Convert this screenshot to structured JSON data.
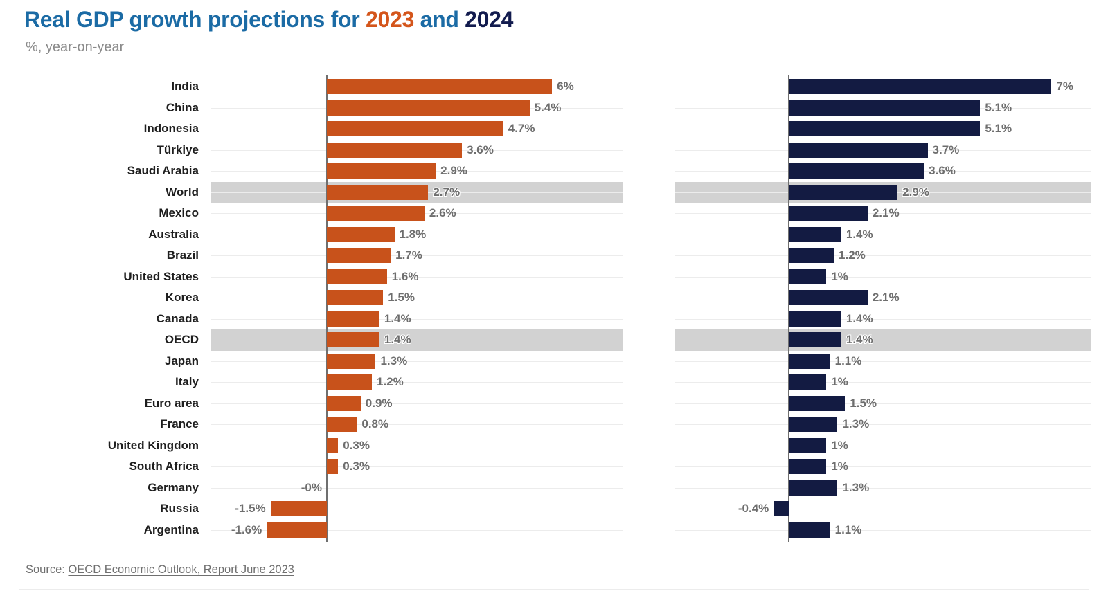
{
  "title": {
    "prefix": "Real GDP growth projections for ",
    "year_2023": "2023",
    "connector": " and ",
    "year_2024": "2024"
  },
  "subtitle": "%, year-on-year",
  "source": {
    "prefix": "Source: ",
    "link_text": "OECD Economic Outlook, Report June 2023"
  },
  "colors": {
    "title_blue": "#1b6ba5",
    "orange_2023": "#c8521b",
    "navy_2024": "#131b42",
    "highlight_band": "#d2d2d2",
    "category_label": "#1e1e1e",
    "value_label": "#6e6e6e",
    "gridline": "#ececec",
    "axis_line": "#6f6f6f"
  },
  "chart_data": {
    "type": "bar",
    "orientation": "horizontal",
    "title": "Real GDP growth projections for 2023 and 2024",
    "subtitle": "%, year-on-year",
    "unit": "%, year-on-year",
    "grid": true,
    "legend_position": "none (years distinguished by color in title)",
    "xlim": [
      -3,
      8
    ],
    "categories": [
      "India",
      "China",
      "Indonesia",
      "Türkiye",
      "Saudi Arabia",
      "World",
      "Mexico",
      "Australia",
      "Brazil",
      "United States",
      "Korea",
      "Canada",
      "OECD",
      "Japan",
      "Italy",
      "Euro area",
      "France",
      "United Kingdom",
      "South Africa",
      "Germany",
      "Russia",
      "Argentina"
    ],
    "highlighted_categories": [
      "World",
      "OECD"
    ],
    "highlighted_indices": [
      5,
      12
    ],
    "series": [
      {
        "name": "2023",
        "color": "#c8521b",
        "values": [
          6,
          5.4,
          4.7,
          3.6,
          2.9,
          2.7,
          2.6,
          1.8,
          1.7,
          1.6,
          1.5,
          1.4,
          1.4,
          1.3,
          1.2,
          0.9,
          0.8,
          0.3,
          0.3,
          0,
          -1.5,
          -1.6
        ],
        "labels": [
          "6%",
          "5.4%",
          "4.7%",
          "3.6%",
          "2.9%",
          "2.7%",
          "2.6%",
          "1.8%",
          "1.7%",
          "1.6%",
          "1.5%",
          "1.4%",
          "1.4%",
          "1.3%",
          "1.2%",
          "0.9%",
          "0.8%",
          "0.3%",
          "0.3%",
          "-0%",
          "-1.5%",
          "-1.6%"
        ]
      },
      {
        "name": "2024",
        "color": "#131b42",
        "values": [
          7,
          5.1,
          5.1,
          3.7,
          3.6,
          2.9,
          2.1,
          1.4,
          1.2,
          1,
          2.1,
          1.4,
          1.4,
          1.1,
          1,
          1.5,
          1.3,
          1,
          1,
          1.3,
          -0.4,
          1.1
        ],
        "labels": [
          "7%",
          "5.1%",
          "5.1%",
          "3.7%",
          "3.6%",
          "2.9%",
          "2.1%",
          "1.4%",
          "1.2%",
          "1%",
          "2.1%",
          "1.4%",
          "1.4%",
          "1.1%",
          "1%",
          "1.5%",
          "1.3%",
          "1%",
          "1%",
          "1.3%",
          "-0.4%",
          "1.1%"
        ]
      }
    ]
  }
}
